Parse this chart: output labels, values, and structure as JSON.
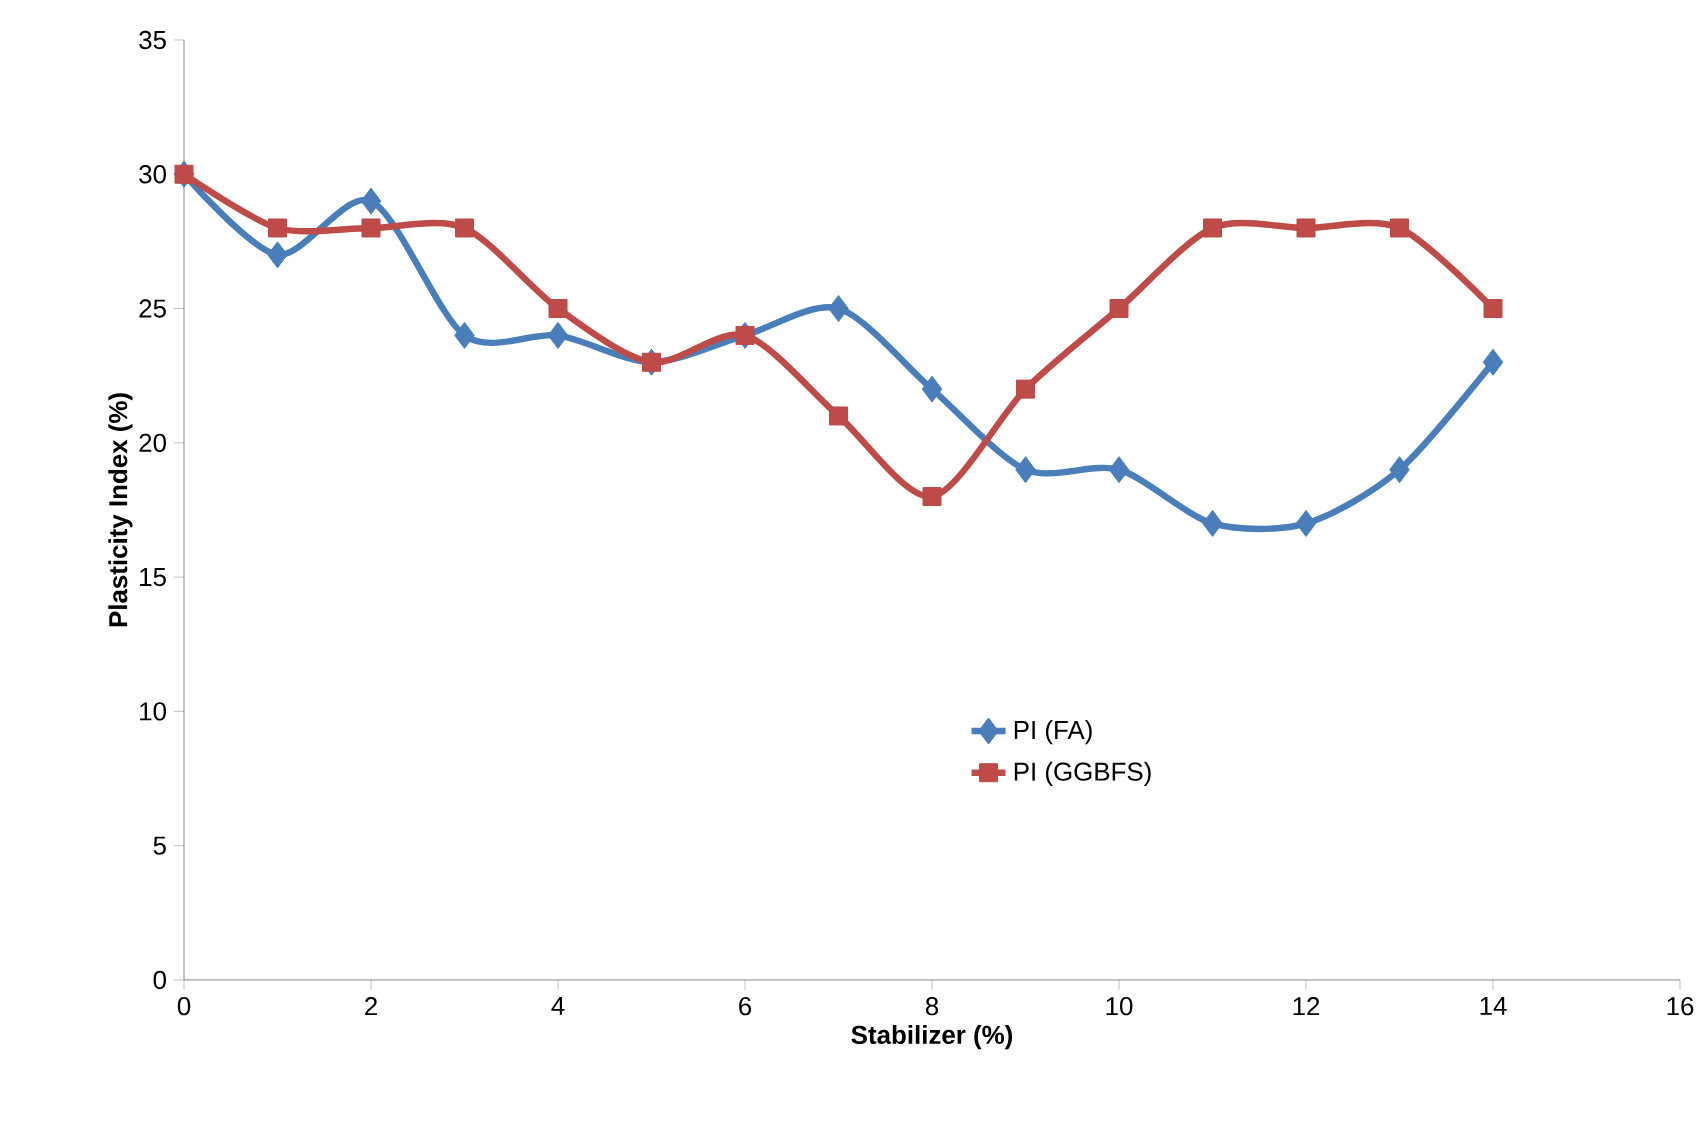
{
  "chart_data": {
    "type": "line",
    "xlabel": "Stabilizer (%)",
    "ylabel": "Plasticity Index (%)",
    "x": [
      0,
      1,
      2,
      3,
      4,
      5,
      6,
      7,
      8,
      9,
      10,
      11,
      12,
      13,
      14
    ],
    "series": [
      {
        "name": "PI (FA)",
        "color": "#4a7ebb",
        "marker": "diamond",
        "values": [
          30,
          27,
          29,
          24,
          24,
          23,
          24,
          25,
          22,
          19,
          19,
          17,
          17,
          19,
          23
        ]
      },
      {
        "name": "PI (GGBFS)",
        "color": "#be4b48",
        "marker": "square",
        "values": [
          30,
          28,
          28,
          28,
          25,
          23,
          24,
          21,
          18,
          22,
          25,
          28,
          28,
          28,
          25
        ]
      }
    ],
    "xlim": [
      0,
      16
    ],
    "xticks": [
      0,
      2,
      4,
      6,
      8,
      10,
      12,
      14,
      16
    ],
    "ylim": [
      0,
      35
    ],
    "yticks": [
      0,
      5,
      10,
      15,
      20,
      25,
      30,
      35
    ],
    "grid": false,
    "legend": "bottom",
    "line_style": "solid"
  }
}
